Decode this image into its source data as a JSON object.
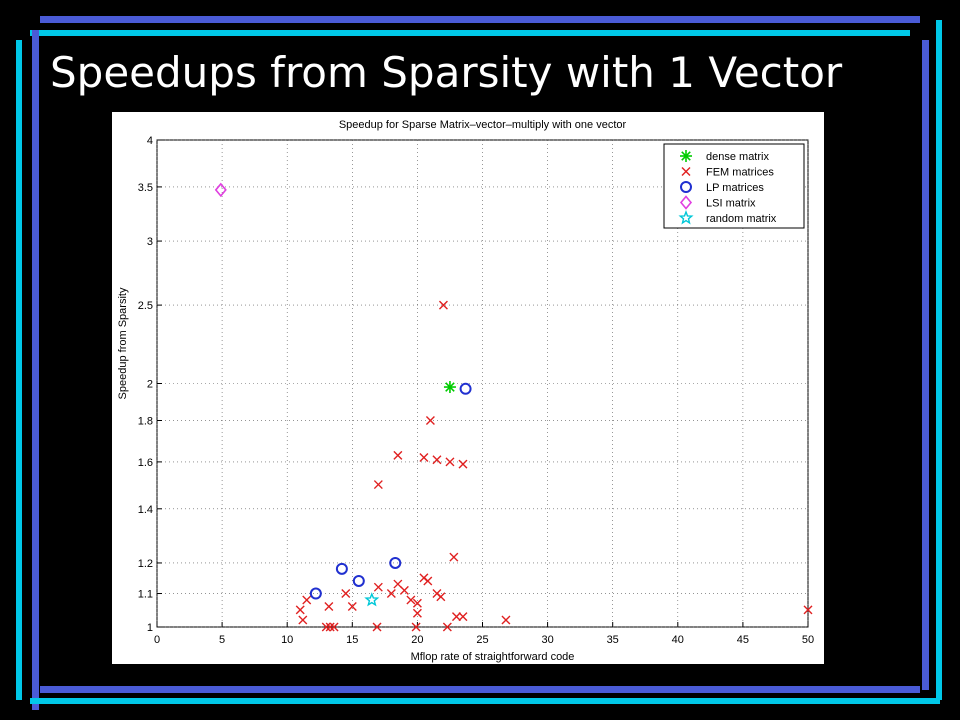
{
  "slide": {
    "title": "Speedups from Sparsity with 1 Vector",
    "accent_colors": {
      "blue": "#4a5bd6",
      "cyan": "#00c8e8"
    }
  },
  "chart_data": {
    "type": "scatter",
    "title": "Speedup for Sparse Matrix–vector–multiply with one vector",
    "xlabel": "Mflop rate of straightforward code",
    "ylabel": "Speedup from Sparsity",
    "xlim": [
      0,
      50
    ],
    "ylim": [
      1,
      4
    ],
    "y_scale": "log",
    "x_ticks": [
      0,
      5,
      10,
      15,
      20,
      25,
      30,
      35,
      40,
      45,
      50
    ],
    "y_ticks": [
      1,
      1.1,
      1.2,
      1.4,
      1.6,
      1.8,
      2,
      2.5,
      3,
      3.5,
      4
    ],
    "y_tick_labels": [
      "1",
      "1.1",
      "1.2",
      "1.4",
      "1.6",
      "1.8",
      "2",
      "2.5",
      "3",
      "3.5",
      "4"
    ],
    "grid": true,
    "legend_position": "top-right",
    "series": [
      {
        "name": "dense matrix",
        "marker": "asterisk",
        "color": "#00cc00",
        "points": [
          [
            22.5,
            1.98
          ]
        ]
      },
      {
        "name": "FEM matrices",
        "marker": "x",
        "color": "#e02020",
        "points": [
          [
            22.0,
            2.5
          ],
          [
            21.0,
            1.8
          ],
          [
            18.5,
            1.63
          ],
          [
            20.5,
            1.62
          ],
          [
            21.5,
            1.61
          ],
          [
            22.5,
            1.6
          ],
          [
            23.5,
            1.59
          ],
          [
            17.0,
            1.5
          ],
          [
            22.8,
            1.22
          ],
          [
            20.5,
            1.15
          ],
          [
            20.8,
            1.14
          ],
          [
            18.5,
            1.13
          ],
          [
            17.0,
            1.12
          ],
          [
            19.0,
            1.11
          ],
          [
            21.5,
            1.1
          ],
          [
            18.0,
            1.1
          ],
          [
            14.5,
            1.1
          ],
          [
            21.8,
            1.09
          ],
          [
            19.5,
            1.08
          ],
          [
            11.5,
            1.08
          ],
          [
            20.0,
            1.07
          ],
          [
            15.0,
            1.06
          ],
          [
            13.2,
            1.06
          ],
          [
            11.0,
            1.05
          ],
          [
            23.0,
            1.03
          ],
          [
            23.5,
            1.03
          ],
          [
            26.8,
            1.02
          ],
          [
            11.2,
            1.02
          ],
          [
            20.0,
            1.04
          ],
          [
            13.0,
            1.0
          ],
          [
            13.3,
            1.0
          ],
          [
            13.6,
            1.0
          ],
          [
            16.9,
            1.0
          ],
          [
            19.9,
            1.0
          ],
          [
            22.3,
            1.0
          ],
          [
            50.0,
            1.05
          ]
        ]
      },
      {
        "name": "LP matrices",
        "marker": "circle",
        "color": "#2030d0",
        "points": [
          [
            23.7,
            1.97
          ],
          [
            18.3,
            1.2
          ],
          [
            14.2,
            1.18
          ],
          [
            15.5,
            1.14
          ],
          [
            12.2,
            1.1
          ]
        ]
      },
      {
        "name": "LSI matrix",
        "marker": "diamond",
        "color": "#e040e0",
        "points": [
          [
            4.9,
            3.47
          ]
        ]
      },
      {
        "name": "random matrix",
        "marker": "star",
        "color": "#00c8d8",
        "points": [
          [
            16.5,
            1.08
          ]
        ]
      }
    ]
  }
}
